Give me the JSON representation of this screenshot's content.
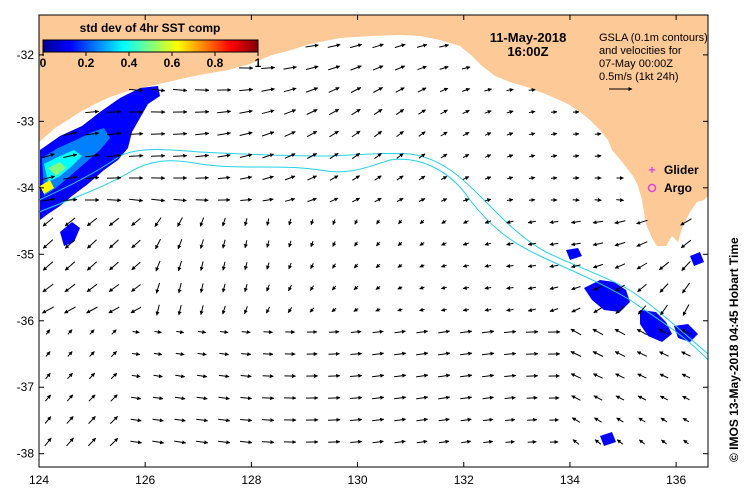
{
  "map": {
    "date": "11-May-2018",
    "time": "16:00Z",
    "info_lines": [
      "GSLA (0.1m contours)",
      "and velocities for",
      "07-May 00:00Z",
      "0.5m/s (1kt 24h)"
    ],
    "credit": "©  IMOS 13-May-2018 04:45 Hobart Time",
    "land_color": "#fcc997",
    "contour_color": "#22d3e6",
    "extent": {
      "lon": [
        124,
        136.6
      ],
      "lat": [
        -38.2,
        -31.4
      ]
    }
  },
  "colorbar": {
    "title": "std dev of 4hr SST comp",
    "ticks": [
      "0",
      "0.2",
      "0.4",
      "0.6",
      "0.8",
      "1"
    ],
    "colors": [
      "#00008f",
      "#0000ff",
      "#0080ff",
      "#00ffff",
      "#80ff80",
      "#ffff00",
      "#ff8000",
      "#ff0000",
      "#800000"
    ]
  },
  "axes": {
    "x_ticks": [
      "124",
      "126",
      "128",
      "130",
      "132",
      "134",
      "136"
    ],
    "y_ticks": [
      "-32",
      "-33",
      "-34",
      "-35",
      "-36",
      "-37",
      "-38"
    ]
  },
  "legend": {
    "items": [
      {
        "label": "Glider",
        "symbol": "plus",
        "color": "#e040e0"
      },
      {
        "label": "Argo",
        "symbol": "circle-star",
        "color": "#e040e0"
      }
    ]
  }
}
